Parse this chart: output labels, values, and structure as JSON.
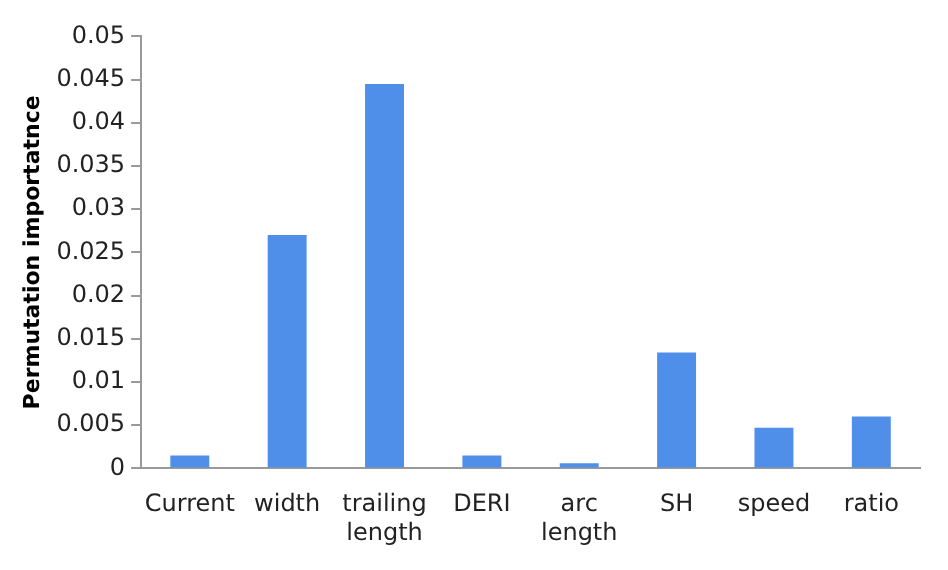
{
  "chart_data": {
    "type": "bar",
    "ylabel": "Permutation importatnce",
    "categories": [
      "Current",
      "width",
      "trailing length",
      "DERI",
      "arc length",
      "SH",
      "speed",
      "ratio"
    ],
    "values": [
      0.0015,
      0.027,
      0.0445,
      0.0015,
      0.0006,
      0.0134,
      0.0047,
      0.006
    ],
    "color": "#4f8fea",
    "ylim": [
      0,
      0.05
    ],
    "yticks": [
      0,
      0.005,
      0.01,
      0.015,
      0.02,
      0.025,
      0.03,
      0.035,
      0.04,
      0.045,
      0.05
    ],
    "grid": false,
    "legend": false
  }
}
